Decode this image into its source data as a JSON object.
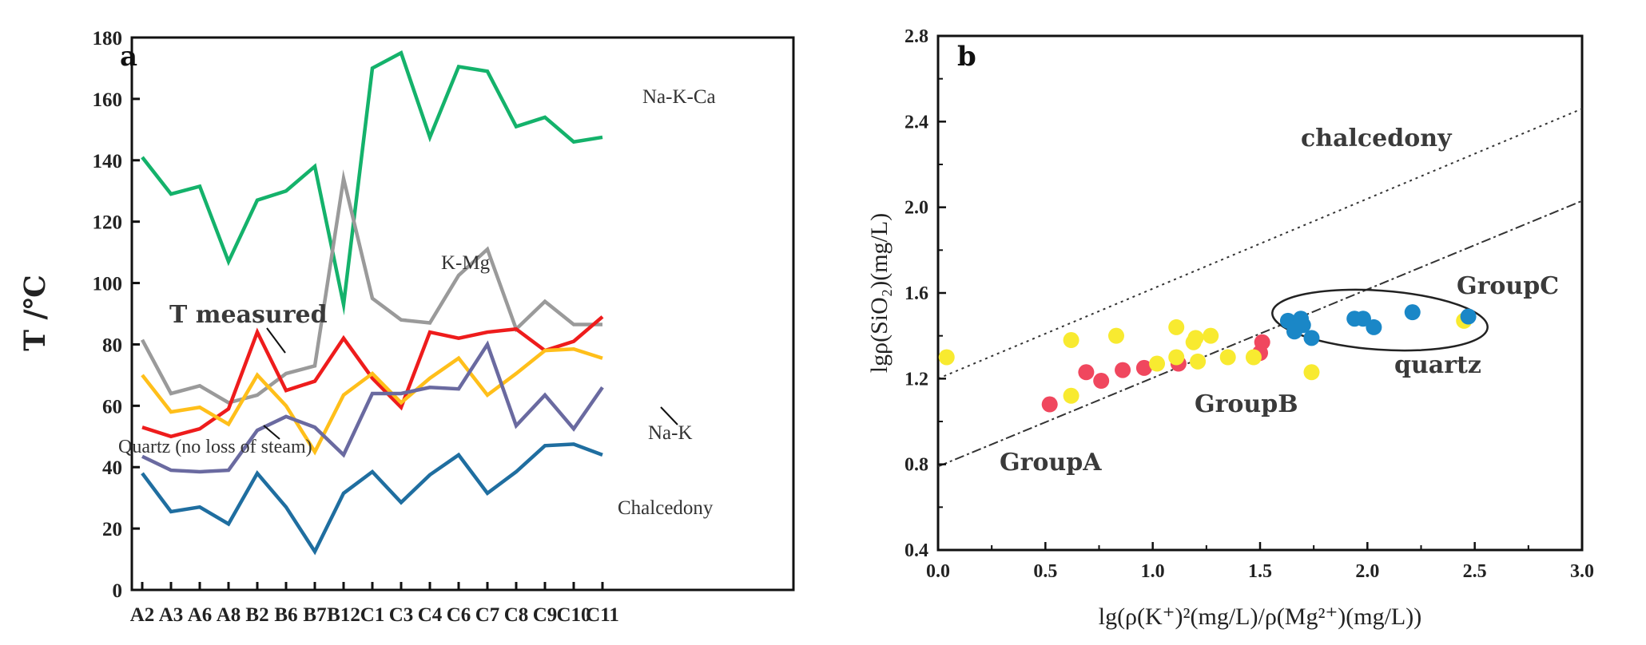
{
  "chart_data": [
    {
      "panel": "a",
      "type": "line",
      "ylabel": "T /℃",
      "ylim": [
        0,
        180
      ],
      "yticks": [
        0,
        20,
        40,
        60,
        80,
        100,
        120,
        140,
        160,
        180
      ],
      "categories": [
        "A2",
        "A3",
        "A6",
        "A8",
        "B2",
        "B6",
        "B7",
        "B12",
        "C1",
        "C3",
        "C4",
        "C6",
        "C7",
        "C8",
        "C9",
        "C10",
        "C11"
      ],
      "series": [
        {
          "name": "Na-K-Ca",
          "color": "#14b26b",
          "values": [
            141,
            129,
            131.5,
            107,
            127,
            130,
            138,
            93,
            170,
            175,
            147.5,
            170.5,
            169,
            151,
            154,
            146,
            147.5
          ]
        },
        {
          "name": "K-Mg",
          "color": "#9a9a9a",
          "values": [
            81.5,
            64,
            66.5,
            61,
            63.5,
            70.5,
            73,
            134,
            95,
            88,
            87,
            102.5,
            111,
            85,
            94,
            86.5,
            86.5
          ]
        },
        {
          "name": "T measured",
          "color": "#ee1c1c",
          "values": [
            53,
            50,
            52.5,
            59,
            84,
            65,
            68,
            82,
            69,
            59.5,
            84,
            82,
            84,
            85,
            78,
            81,
            89
          ]
        },
        {
          "name": "Quartz (no loss of steam)",
          "color": "#ffbf1a",
          "values": [
            70,
            58,
            59.5,
            54,
            70,
            60,
            45,
            63.5,
            70.5,
            61,
            69,
            75.5,
            63.5,
            70.5,
            78,
            78.5,
            75.5
          ]
        },
        {
          "name": "Na-K",
          "color": "#6a6aa0",
          "values": [
            43.5,
            39,
            38.5,
            39,
            52,
            56.5,
            53,
            44,
            64,
            64,
            66,
            65.5,
            80,
            53.5,
            63.5,
            52.5,
            66
          ]
        },
        {
          "name": "Chalcedony",
          "color": "#1f6ea0",
          "values": [
            38,
            25.5,
            27,
            21.5,
            38,
            27,
            12.5,
            31.5,
            38.5,
            28.5,
            37.5,
            44,
            31.5,
            38.5,
            47,
            47.5,
            44
          ]
        }
      ],
      "annotations": [
        "Na-K-Ca",
        "K-Mg",
        "T measured",
        "Quartz  (no loss of steam)",
        "Na-K",
        "Chalcedony"
      ]
    },
    {
      "panel": "b",
      "type": "scatter",
      "xlabel": "lg(ρ(K⁺)²(mg/L)/ρ(Mg²⁺)(mg/L))",
      "ylabel": "lgρ(SiO₂)(mg/L)",
      "xlim": [
        0.0,
        3.0
      ],
      "ylim": [
        0.4,
        2.8
      ],
      "xticks": [
        "0.0",
        "0.5",
        "1.0",
        "1.5",
        "2.0",
        "2.5",
        "3.0"
      ],
      "yticks": [
        "0.4",
        "0.8",
        "1.2",
        "1.6",
        "2.0",
        "2.4",
        "2.8"
      ],
      "lines": [
        {
          "name": "chalcedony",
          "style": "dotted",
          "x": [
            0.0,
            3.0
          ],
          "y": [
            1.2,
            2.46
          ]
        },
        {
          "name": "quartz",
          "style": "dashed",
          "x": [
            0.0,
            3.0
          ],
          "y": [
            0.79,
            2.03
          ]
        }
      ],
      "series": [
        {
          "name": "GroupA",
          "color": "#f0475e",
          "points": [
            [
              0.52,
              1.08
            ],
            [
              0.69,
              1.23
            ],
            [
              0.76,
              1.19
            ],
            [
              0.86,
              1.24
            ],
            [
              0.96,
              1.25
            ],
            [
              1.12,
              1.27
            ],
            [
              1.5,
              1.32
            ],
            [
              1.51,
              1.37
            ]
          ]
        },
        {
          "name": "GroupB",
          "color": "#f8ea30",
          "points": [
            [
              0.04,
              1.3
            ],
            [
              0.62,
              1.38
            ],
            [
              0.62,
              1.12
            ],
            [
              0.83,
              1.4
            ],
            [
              1.02,
              1.27
            ],
            [
              1.11,
              1.44
            ],
            [
              1.11,
              1.3
            ],
            [
              1.19,
              1.37
            ],
            [
              1.2,
              1.39
            ],
            [
              1.21,
              1.28
            ],
            [
              1.27,
              1.4
            ],
            [
              1.35,
              1.3
            ],
            [
              1.47,
              1.3
            ],
            [
              1.74,
              1.23
            ],
            [
              2.45,
              1.47
            ]
          ]
        },
        {
          "name": "GroupC",
          "color": "#1a87c7",
          "points": [
            [
              1.63,
              1.47
            ],
            [
              1.66,
              1.42
            ],
            [
              1.67,
              1.44
            ],
            [
              1.69,
              1.48
            ],
            [
              1.7,
              1.45
            ],
            [
              1.74,
              1.39
            ],
            [
              1.94,
              1.48
            ],
            [
              1.98,
              1.48
            ],
            [
              2.03,
              1.44
            ],
            [
              2.21,
              1.51
            ],
            [
              2.47,
              1.49
            ]
          ]
        }
      ],
      "annotations": [
        "chalcedony",
        "quartz",
        "GroupA",
        "GroupB",
        "GroupC"
      ]
    }
  ],
  "panel_labels": {
    "a": "a",
    "b": "b"
  }
}
